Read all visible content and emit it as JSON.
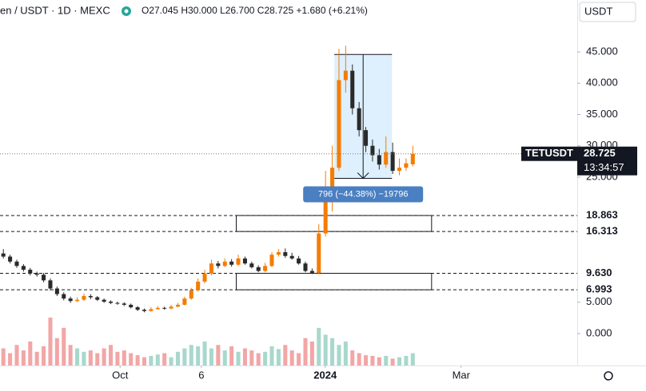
{
  "chart_data": {
    "type": "candlestick",
    "symbol_text": "en / USDT · 1D · MEXC",
    "ohlc_text": "O27.045 H30.000 L26.700 C28.725 +1.680 (+6.21%)",
    "currency": "USDT",
    "open": [
      12.8,
      12.3,
      11.5,
      10.8,
      10.2,
      9.6,
      9.4,
      8.5,
      7.2,
      6.3,
      5.6,
      5.2,
      5.4,
      6.0,
      5.8,
      5.4,
      5.1,
      4.9,
      4.8,
      4.6,
      4.2,
      3.8,
      3.6,
      3.9,
      4.1,
      4.0,
      4.3,
      4.6,
      5.6,
      6.9,
      8.3,
      9.6,
      11.2,
      10.8,
      11.5,
      11.0,
      12.0,
      11.2,
      10.6,
      10.0,
      10.8,
      12.6,
      13.0,
      12.4,
      12.0,
      11.2,
      10.0,
      9.7,
      16.0,
      21.5,
      26.5,
      40.5,
      42.0,
      36.0,
      32.5,
      30.0,
      28.5,
      27.0,
      29.0,
      26.0,
      26.5,
      27.045
    ],
    "high": [
      13.5,
      12.6,
      11.8,
      11.1,
      10.5,
      9.9,
      9.7,
      8.8,
      7.5,
      6.6,
      5.9,
      5.8,
      6.4,
      6.3,
      6.0,
      5.6,
      5.3,
      5.1,
      5.0,
      4.8,
      4.4,
      4.0,
      4.2,
      4.4,
      4.3,
      4.6,
      4.9,
      5.9,
      7.3,
      8.8,
      10.2,
      11.8,
      11.6,
      12.0,
      11.9,
      12.6,
      12.3,
      11.5,
      10.9,
      11.3,
      13.0,
      13.5,
      13.6,
      12.9,
      12.4,
      11.5,
      10.4,
      17.5,
      26.0,
      30.0,
      45.5,
      46.0,
      43.0,
      37.0,
      33.0,
      31.0,
      29.5,
      31.5,
      30.5,
      28.0,
      28.0,
      30.0
    ],
    "low": [
      12.0,
      11.2,
      10.5,
      9.9,
      9.3,
      9.1,
      8.2,
      6.9,
      6.0,
      5.3,
      4.9,
      5.0,
      5.2,
      5.5,
      5.2,
      4.9,
      4.7,
      4.6,
      4.4,
      4.0,
      3.6,
      3.4,
      3.5,
      3.8,
      3.8,
      3.9,
      4.2,
      4.5,
      5.4,
      6.7,
      8.0,
      9.3,
      10.4,
      10.6,
      10.7,
      10.8,
      11.0,
      10.4,
      9.8,
      9.8,
      10.6,
      12.3,
      12.1,
      11.8,
      11.0,
      9.8,
      9.5,
      9.5,
      15.5,
      19.5,
      26.0,
      38.5,
      35.0,
      31.5,
      29.0,
      27.5,
      26.2,
      26.5,
      25.5,
      25.3,
      26.0,
      26.7
    ],
    "close": [
      12.3,
      11.5,
      10.8,
      10.2,
      9.6,
      9.4,
      8.5,
      7.2,
      6.3,
      5.6,
      5.2,
      5.4,
      6.0,
      5.8,
      5.4,
      5.1,
      4.9,
      4.8,
      4.6,
      4.2,
      3.8,
      3.6,
      3.9,
      4.1,
      4.0,
      4.3,
      4.6,
      5.6,
      6.9,
      8.3,
      9.6,
      11.2,
      10.8,
      11.5,
      11.0,
      12.0,
      11.2,
      10.6,
      10.0,
      10.8,
      12.6,
      13.0,
      12.4,
      12.0,
      11.2,
      10.0,
      9.7,
      16.0,
      21.5,
      26.5,
      40.5,
      42.0,
      36.0,
      32.5,
      30.0,
      28.5,
      27.0,
      29.0,
      26.0,
      26.5,
      27.2,
      28.725
    ],
    "volume": [
      25,
      18,
      30,
      22,
      35,
      20,
      28,
      70,
      40,
      55,
      30,
      25,
      20,
      22,
      18,
      25,
      30,
      20,
      22,
      18,
      15,
      12,
      14,
      16,
      18,
      12,
      20,
      25,
      30,
      28,
      35,
      25,
      30,
      22,
      28,
      20,
      25,
      22,
      18,
      20,
      28,
      24,
      30,
      22,
      18,
      40,
      35,
      55,
      45,
      40,
      30,
      35,
      22,
      18,
      15,
      14,
      12,
      14,
      10,
      12,
      14,
      18
    ],
    "up_color": "#f57c00",
    "down_color": "#2a2a2a",
    "vol_up_color": "#a8d8cc",
    "vol_down_color": "#f2a6a6",
    "xlim": [
      -0.5,
      85.5
    ],
    "xticks": [
      {
        "value": 17.4,
        "label": "Oct"
      },
      {
        "value": 29.5,
        "label": "6"
      },
      {
        "value": 47.95,
        "label": "2024"
      },
      {
        "value": 68.2,
        "label": "Mar"
      }
    ],
    "ylim": [
      -5.1,
      53.3
    ],
    "yticks": [
      {
        "value": 0,
        "label": "0.000"
      },
      {
        "value": 5,
        "label": "5.000"
      },
      {
        "value": 25,
        "label": "25.000"
      },
      {
        "value": 30,
        "label": "30.000"
      },
      {
        "value": 35,
        "label": "35.000"
      },
      {
        "value": 40,
        "label": "40.000"
      },
      {
        "value": 45,
        "label": "45.000"
      }
    ],
    "levels": [
      {
        "value": 18.863,
        "label": "18.863"
      },
      {
        "value": 16.313,
        "label": "16.313"
      },
      {
        "value": 9.63,
        "label": "9.630"
      },
      {
        "value": 6.993,
        "label": "6.993"
      }
    ],
    "last_price": {
      "value": 28.725,
      "label": "28.725",
      "ticker": "TETUSDT",
      "countdown": "13:34:57"
    },
    "measure": {
      "from": 44.6,
      "to": 24.8,
      "label": "796 (−44.38%) −19796"
    }
  }
}
